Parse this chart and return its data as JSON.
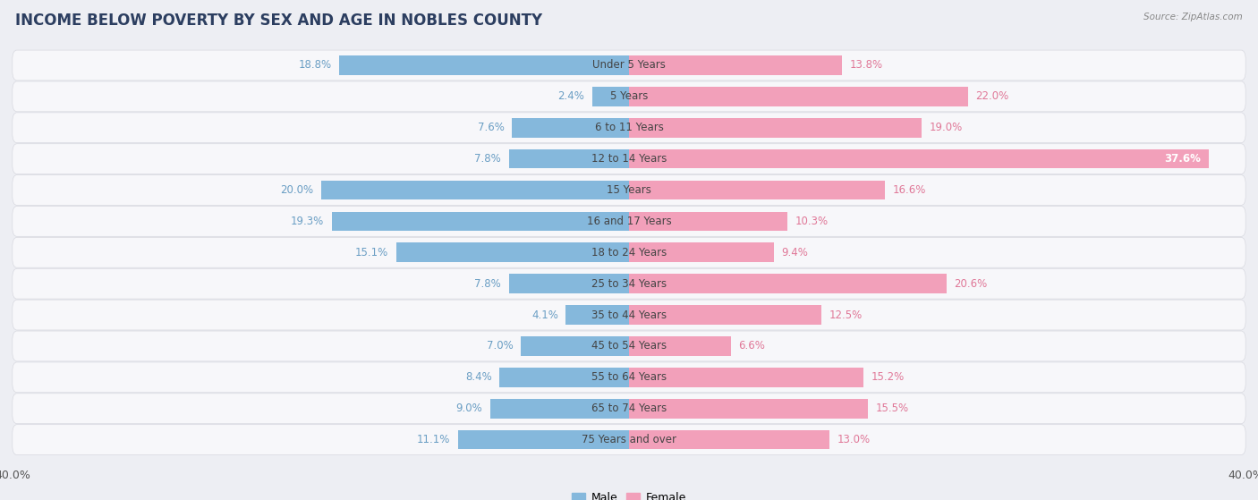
{
  "title": "INCOME BELOW POVERTY BY SEX AND AGE IN NOBLES COUNTY",
  "source": "Source: ZipAtlas.com",
  "categories": [
    "Under 5 Years",
    "5 Years",
    "6 to 11 Years",
    "12 to 14 Years",
    "15 Years",
    "16 and 17 Years",
    "18 to 24 Years",
    "25 to 34 Years",
    "35 to 44 Years",
    "45 to 54 Years",
    "55 to 64 Years",
    "65 to 74 Years",
    "75 Years and over"
  ],
  "male": [
    18.8,
    2.4,
    7.6,
    7.8,
    20.0,
    19.3,
    15.1,
    7.8,
    4.1,
    7.0,
    8.4,
    9.0,
    11.1
  ],
  "female": [
    13.8,
    22.0,
    19.0,
    37.6,
    16.6,
    10.3,
    9.4,
    20.6,
    12.5,
    6.6,
    15.2,
    15.5,
    13.0
  ],
  "male_color": "#85b8dc",
  "female_color": "#f2a0ba",
  "female_dark_color": "#e8638a",
  "male_label_color": "#6a9ec4",
  "female_label_color": "#e07898",
  "bg_color": "#edeef3",
  "bar_bg_color": "#f7f7fa",
  "row_border_color": "#d8d9e0",
  "xlim": 40.0,
  "bar_height": 0.62,
  "title_fontsize": 12,
  "label_fontsize": 8.5,
  "axis_label_fontsize": 9,
  "category_fontsize": 8.5
}
